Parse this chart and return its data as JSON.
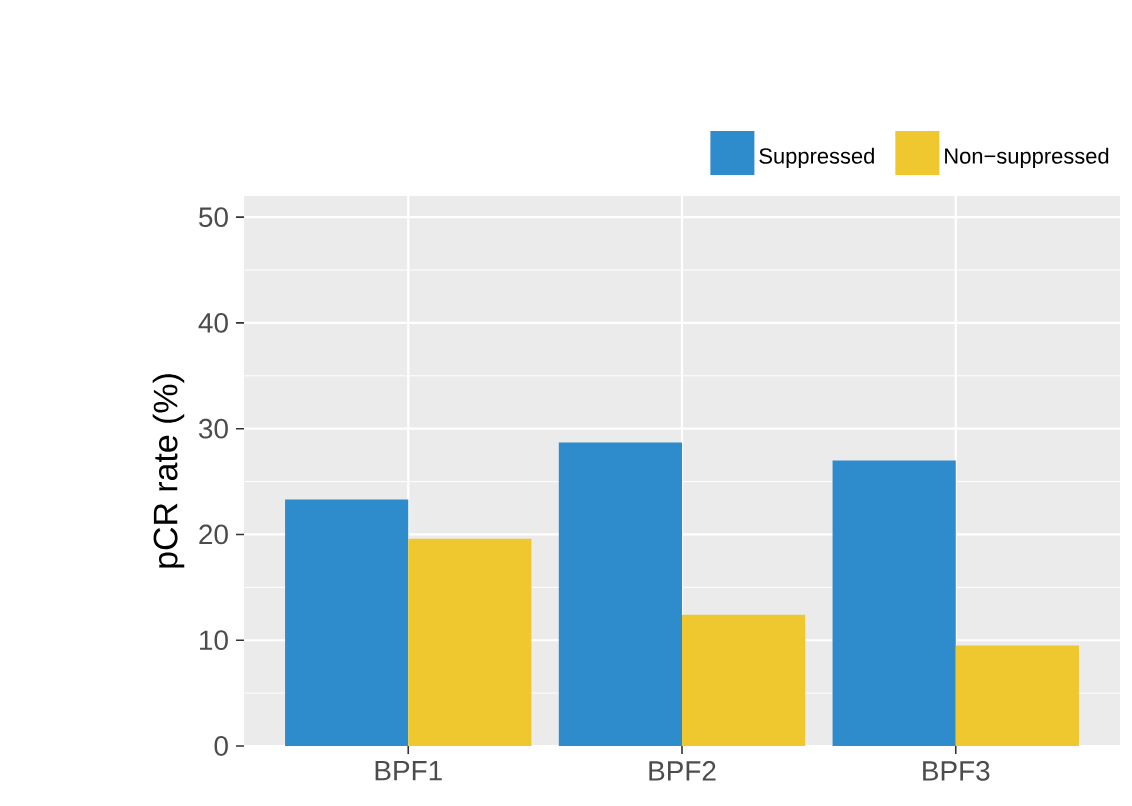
{
  "chart_data": {
    "type": "bar",
    "ylabel": "pCR rate (%)",
    "categories": [
      "BPF1",
      "BPF2",
      "BPF3"
    ],
    "series": [
      {
        "name": "Suppressed",
        "color": "#2e8bcc",
        "values": [
          23.3,
          28.7,
          27.0
        ]
      },
      {
        "name": "Non−suppressed",
        "color": "#efc830",
        "values": [
          19.6,
          12.4,
          9.5
        ]
      }
    ],
    "ylim": [
      0,
      52
    ],
    "yticks": [
      0,
      10,
      20,
      30,
      40,
      50
    ],
    "grid": true,
    "legend": "top right"
  }
}
